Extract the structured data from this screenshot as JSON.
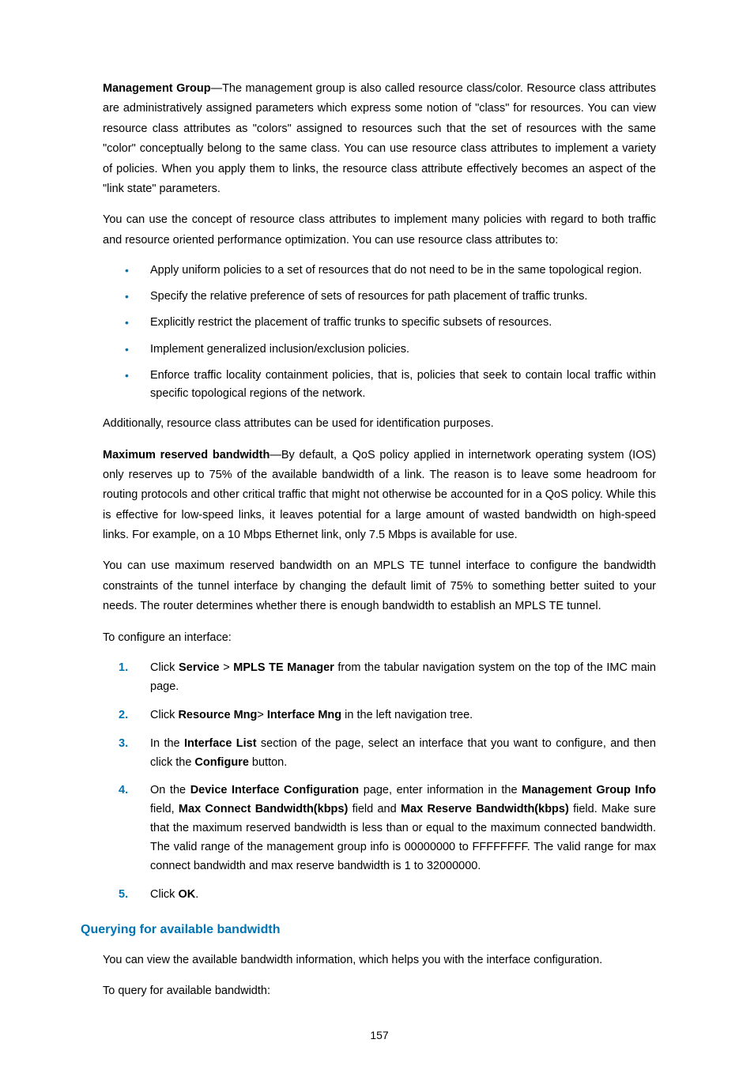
{
  "para1_lead": "Management Group",
  "para1_rest": "—The management group is also called resource class/color. Resource class attributes are administratively assigned parameters which express some notion of \"class\" for resources. You can view resource class attributes as \"colors\" assigned to resources such that the set of resources with the same \"color\" conceptually belong to the same class. You can use resource class attributes to implement a variety of policies. When you apply them to links, the resource class attribute effectively becomes an aspect of the \"link state\" parameters.",
  "para2": "You can use the concept of resource class attributes to implement many policies with regard to both traffic and resource oriented performance optimization. You can use resource class attributes to:",
  "bullets": [
    "Apply uniform policies to a set of resources that do not need to be in the same topological region.",
    "Specify the relative preference of sets of resources for path placement of traffic trunks.",
    "Explicitly restrict the placement of traffic trunks to specific subsets of resources.",
    "Implement generalized inclusion/exclusion policies.",
    "Enforce traffic locality containment policies, that is, policies that seek to contain local traffic within specific topological regions of the network."
  ],
  "para3": "Additionally, resource class attributes can be used for identification purposes.",
  "para4_lead": "Maximum reserved bandwidth",
  "para4_rest": "—By default, a QoS policy applied in internetwork operating system (IOS) only reserves up to 75% of the available bandwidth of a link. The reason is to leave some headroom for routing protocols and other critical traffic that might not otherwise be accounted for in a QoS policy. While this is effective for low-speed links, it leaves potential for a large amount of wasted bandwidth on high-speed links. For example, on a 10 Mbps Ethernet link, only 7.5 Mbps is available for use.",
  "para5": "You can use maximum reserved bandwidth on an MPLS TE tunnel interface to configure the bandwidth constraints of the tunnel interface by changing the default limit of 75% to something better suited to your needs. The router determines whether there is enough bandwidth to establish an MPLS TE tunnel.",
  "para6": "To configure an interface:",
  "steps": {
    "s1_pre": "Click ",
    "s1_b1": "Service",
    "s1_mid": " > ",
    "s1_b2": "MPLS TE Manager",
    "s1_post": " from the tabular navigation system on the top of the IMC main page.",
    "s2_pre": "Click ",
    "s2_b1": "Resource Mng",
    "s2_mid": "> ",
    "s2_b2": "Interface Mng",
    "s2_post": " in the left navigation tree.",
    "s3_pre": "In the ",
    "s3_b1": "Interface List",
    "s3_mid": " section of the page, select an interface that you want to configure, and then click the ",
    "s3_b2": "Configure",
    "s3_post": " button.",
    "s4_pre": "On the ",
    "s4_b1": "Device Interface Configuration",
    "s4_m1": " page, enter information in the ",
    "s4_b2": "Management Group Info",
    "s4_m2": " field, ",
    "s4_b3": "Max Connect Bandwidth(kbps)",
    "s4_m3": " field and ",
    "s4_b4": "Max Reserve Bandwidth(kbps)",
    "s4_post": " field. Make sure that the maximum reserved bandwidth is less than or equal to the maximum connected bandwidth. The valid range of the management group info is 00000000 to FFFFFFFF. The valid range for max connect bandwidth and max reserve bandwidth is 1 to 32000000.",
    "s5_pre": "Click ",
    "s5_b1": "OK",
    "s5_post": "."
  },
  "heading": "Querying for available bandwidth",
  "para7": "You can view the available bandwidth information, which helps you with the interface configuration.",
  "para8": "To query for available bandwidth:",
  "pagenum": "157"
}
